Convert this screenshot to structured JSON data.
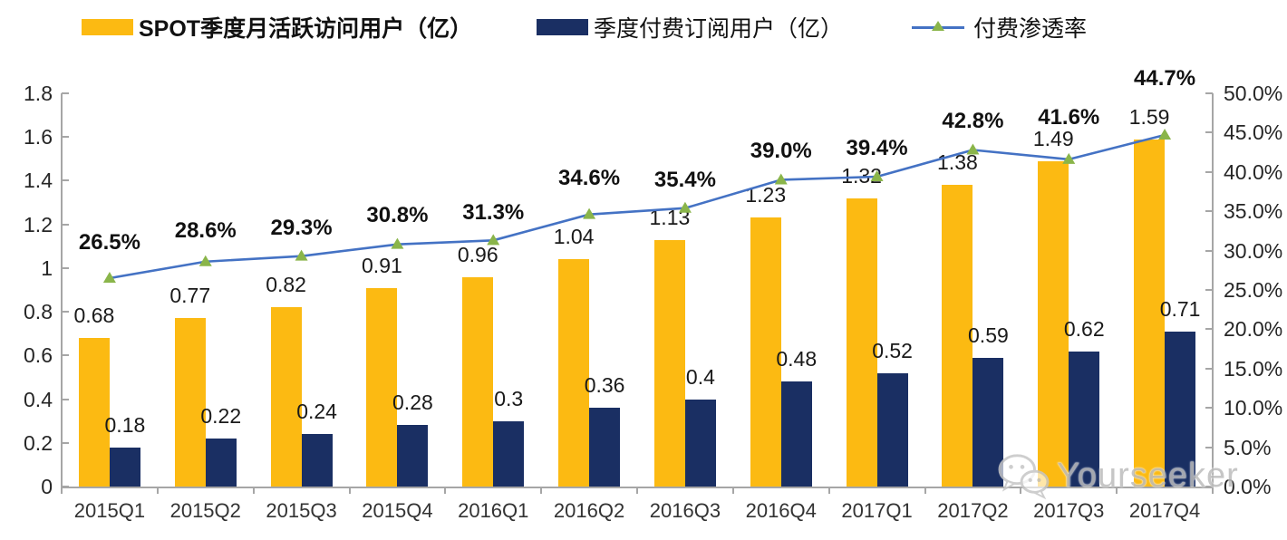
{
  "legend": {
    "items": [
      {
        "label": "SPOT季度月活跃访问用户（亿）",
        "swatch": "yellow-bar",
        "color": "#FCBA12",
        "bold": true
      },
      {
        "label": "季度付费订阅用户（亿）",
        "swatch": "navy-bar",
        "color": "#1A2F63",
        "bold": false
      },
      {
        "label": "付费渗透率",
        "swatch": "line-marker",
        "color": "#4472C4",
        "marker_color": "#8AB54A",
        "bold": false
      }
    ]
  },
  "chart_data": {
    "type": "combo: grouped bar + line",
    "categories": [
      "2015Q1",
      "2015Q2",
      "2015Q3",
      "2015Q4",
      "2016Q1",
      "2016Q2",
      "2016Q3",
      "2016Q4",
      "2017Q1",
      "2017Q2",
      "2017Q3",
      "2017Q4"
    ],
    "series": [
      {
        "name": "SPOT季度月活跃访问用户（亿）",
        "type": "bar",
        "axis": "left",
        "color": "#FCBA12",
        "values": [
          0.68,
          0.77,
          0.82,
          0.91,
          0.96,
          1.04,
          1.13,
          1.23,
          1.32,
          1.38,
          1.49,
          1.59
        ],
        "labels": [
          "0.68",
          "0.77",
          "0.82",
          "0.91",
          "0.96",
          "1.04",
          "1.13",
          "1.23",
          "1.32",
          "1.38",
          "1.49",
          "1.59"
        ]
      },
      {
        "name": "季度付费订阅用户（亿）",
        "type": "bar",
        "axis": "left",
        "color": "#1A2F63",
        "values": [
          0.18,
          0.22,
          0.24,
          0.28,
          0.3,
          0.36,
          0.4,
          0.48,
          0.52,
          0.59,
          0.62,
          0.71
        ],
        "labels": [
          "0.18",
          "0.22",
          "0.24",
          "0.28",
          "0.3",
          "0.36",
          "0.4",
          "0.48",
          "0.52",
          "0.59",
          "0.62",
          "0.71"
        ]
      },
      {
        "name": "付费渗透率",
        "type": "line",
        "axis": "right",
        "color": "#4472C4",
        "marker": "triangle",
        "marker_color": "#8AB54A",
        "values_pct": [
          26.5,
          28.6,
          29.3,
          30.8,
          31.3,
          34.6,
          35.4,
          39.0,
          39.4,
          42.8,
          41.6,
          44.7
        ],
        "labels": [
          "26.5%",
          "28.6%",
          "29.3%",
          "30.8%",
          "31.3%",
          "34.6%",
          "35.4%",
          "39.0%",
          "39.4%",
          "42.8%",
          "41.6%",
          "44.7%"
        ]
      }
    ],
    "left_axis": {
      "min": 0,
      "max": 1.8,
      "step": 0.2,
      "ticks": [
        "0",
        "0.2",
        "0.4",
        "0.6",
        "0.8",
        "1",
        "1.2",
        "1.4",
        "1.6",
        "1.8"
      ]
    },
    "right_axis": {
      "min": 0,
      "max": 50,
      "step": 5,
      "ticks": [
        "0.0%",
        "5.0%",
        "10.0%",
        "15.0%",
        "20.0%",
        "25.0%",
        "30.0%",
        "35.0%",
        "40.0%",
        "45.0%",
        "50.0%"
      ]
    },
    "grid": false,
    "legend_position": "top",
    "title": ""
  },
  "watermark": {
    "text": "Yourseeker",
    "icon": "wechat-icon"
  }
}
